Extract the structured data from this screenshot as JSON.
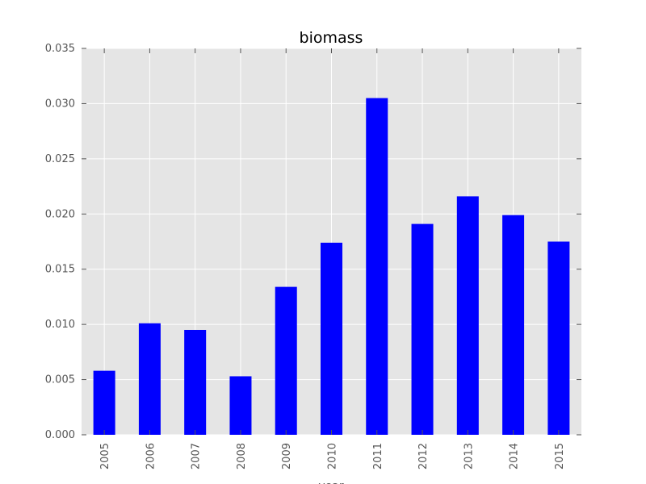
{
  "chart_data": {
    "type": "bar",
    "title": "biomass",
    "xlabel": "year",
    "ylabel": "",
    "categories": [
      "2005",
      "2006",
      "2007",
      "2008",
      "2009",
      "2010",
      "2011",
      "2012",
      "2013",
      "2014",
      "2015"
    ],
    "values": [
      0.0058,
      0.0101,
      0.0095,
      0.0053,
      0.0134,
      0.0174,
      0.0305,
      0.0191,
      0.0216,
      0.0199,
      0.0175
    ],
    "ylim": [
      0,
      0.035
    ],
    "yticks": [
      "0.000",
      "0.005",
      "0.010",
      "0.015",
      "0.020",
      "0.025",
      "0.030",
      "0.035"
    ],
    "grid": true,
    "legend": "none",
    "colors": {
      "bar": "#0000ff",
      "plot_background": "#e5e5e5",
      "grid": "#ffffff",
      "tick_text": "#555555"
    }
  }
}
